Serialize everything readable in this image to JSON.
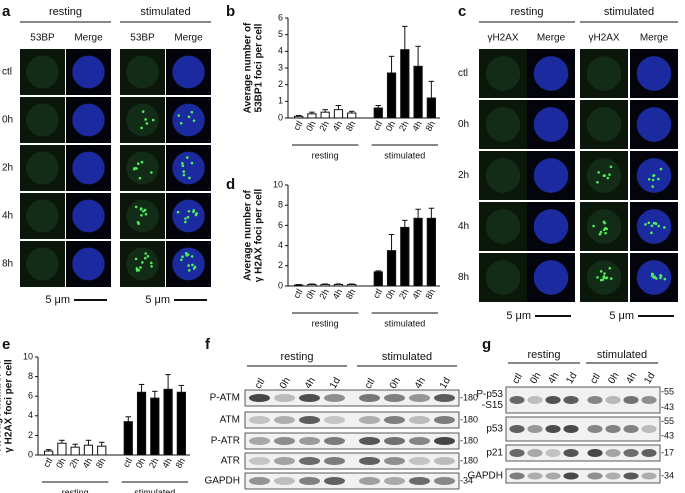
{
  "chart_data": [
    {
      "type": "bar",
      "label": "b",
      "y_label": [
        "Average number of",
        "53BP1 foci per cell"
      ],
      "categories": [
        "ctl",
        "0h",
        "2h",
        "4h",
        "8h"
      ],
      "series": [
        {
          "name": "resting",
          "color": "#ffffff",
          "values": [
            0.1,
            0.25,
            0.35,
            0.5,
            0.3
          ],
          "errors": [
            0.05,
            0.1,
            0.15,
            0.25,
            0.1
          ]
        },
        {
          "name": "stimulated",
          "color": "#000000",
          "values": [
            0.6,
            2.7,
            4.1,
            3.1,
            1.2
          ],
          "errors": [
            0.15,
            1.0,
            1.4,
            1.2,
            1.0
          ]
        }
      ],
      "ylim": [
        0,
        6
      ],
      "yticks": [
        0,
        1,
        2,
        3,
        4,
        5,
        6
      ]
    },
    {
      "type": "bar",
      "label": "d",
      "y_label": [
        "Average number of",
        "γ H2AX foci per cell"
      ],
      "categories": [
        "ctl",
        "0h",
        "2h",
        "4h",
        "8h"
      ],
      "series": [
        {
          "name": "resting",
          "color": "#ffffff",
          "values": [
            0.1,
            0.15,
            0.15,
            0.15,
            0.15
          ],
          "errors": [
            0.05,
            0.05,
            0.05,
            0.05,
            0.05
          ]
        },
        {
          "name": "stimulated",
          "color": "#000000",
          "values": [
            1.4,
            3.5,
            5.8,
            6.7,
            6.7
          ],
          "errors": [
            0.1,
            1.6,
            0.7,
            0.9,
            1.0
          ]
        }
      ],
      "ylim": [
        0,
        10
      ],
      "yticks": [
        0,
        2,
        4,
        6,
        8,
        10
      ]
    },
    {
      "type": "bar",
      "label": "e",
      "y_label": [
        "Average number of",
        "γ H2AX foci per cell"
      ],
      "categories": [
        "ctl",
        "0h",
        "2h",
        "4h",
        "8h"
      ],
      "series": [
        {
          "name": "resting",
          "color": "#ffffff",
          "values": [
            0.4,
            1.2,
            0.8,
            1.0,
            0.9
          ],
          "errors": [
            0.15,
            0.3,
            0.3,
            0.5,
            0.4
          ]
        },
        {
          "name": "stimulated",
          "color": "#000000",
          "values": [
            3.4,
            6.4,
            5.8,
            6.7,
            6.4
          ],
          "errors": [
            0.5,
            0.8,
            0.7,
            1.5,
            0.7
          ]
        }
      ],
      "ylim": [
        0,
        10
      ],
      "yticks": [
        0,
        2,
        4,
        6,
        8,
        10
      ]
    }
  ],
  "microscopy": [
    {
      "label": "a",
      "groups": [
        "resting",
        "stimulated"
      ],
      "channels": [
        "53BP",
        "Merge",
        "53BP",
        "Merge"
      ],
      "rows": [
        "ctl",
        "0h",
        "2h",
        "4h",
        "8h"
      ],
      "scale": "5 μm"
    },
    {
      "label": "c",
      "groups": [
        "resting",
        "stimulated"
      ],
      "channels": [
        "γH2AX",
        "Merge",
        "γH2AX",
        "Merge"
      ],
      "rows": [
        "ctl",
        "0h",
        "2h",
        "4h",
        "8h"
      ],
      "scale": "5 μm"
    }
  ],
  "blots": [
    {
      "label": "f",
      "groups": [
        "resting",
        "stimulated"
      ],
      "lanes": [
        "ctl",
        "0h",
        "4h",
        "1d",
        "ctl",
        "0h",
        "4h",
        "1d"
      ],
      "rows": [
        {
          "label_lines": [
            "P-ATM"
          ],
          "markers": [
            "-180"
          ]
        },
        {
          "label_lines": [
            "ATM"
          ],
          "markers": [
            "-180"
          ]
        },
        {
          "label_lines": [
            "P-ATR"
          ],
          "markers": [
            "-180"
          ]
        },
        {
          "label_lines": [
            "ATR"
          ],
          "markers": [
            "-180"
          ]
        },
        {
          "label_lines": [
            "GAPDH"
          ],
          "markers": [
            "-34"
          ]
        }
      ]
    },
    {
      "label": "g",
      "groups": [
        "resting",
        "stimulated"
      ],
      "lanes": [
        "ctl",
        "0h",
        "4h",
        "1d",
        "ctl",
        "0h",
        "4h",
        "1d"
      ],
      "rows": [
        {
          "label_lines": [
            "P-p53",
            "-S15"
          ],
          "markers": [
            "-55",
            "-43"
          ]
        },
        {
          "label_lines": [
            "p53"
          ],
          "markers": [
            "-55",
            "-43"
          ]
        },
        {
          "label_lines": [
            "p21"
          ],
          "markers": [
            "-17"
          ]
        },
        {
          "label_lines": [
            "GAPDH"
          ],
          "markers": [
            "-34"
          ]
        }
      ]
    }
  ]
}
